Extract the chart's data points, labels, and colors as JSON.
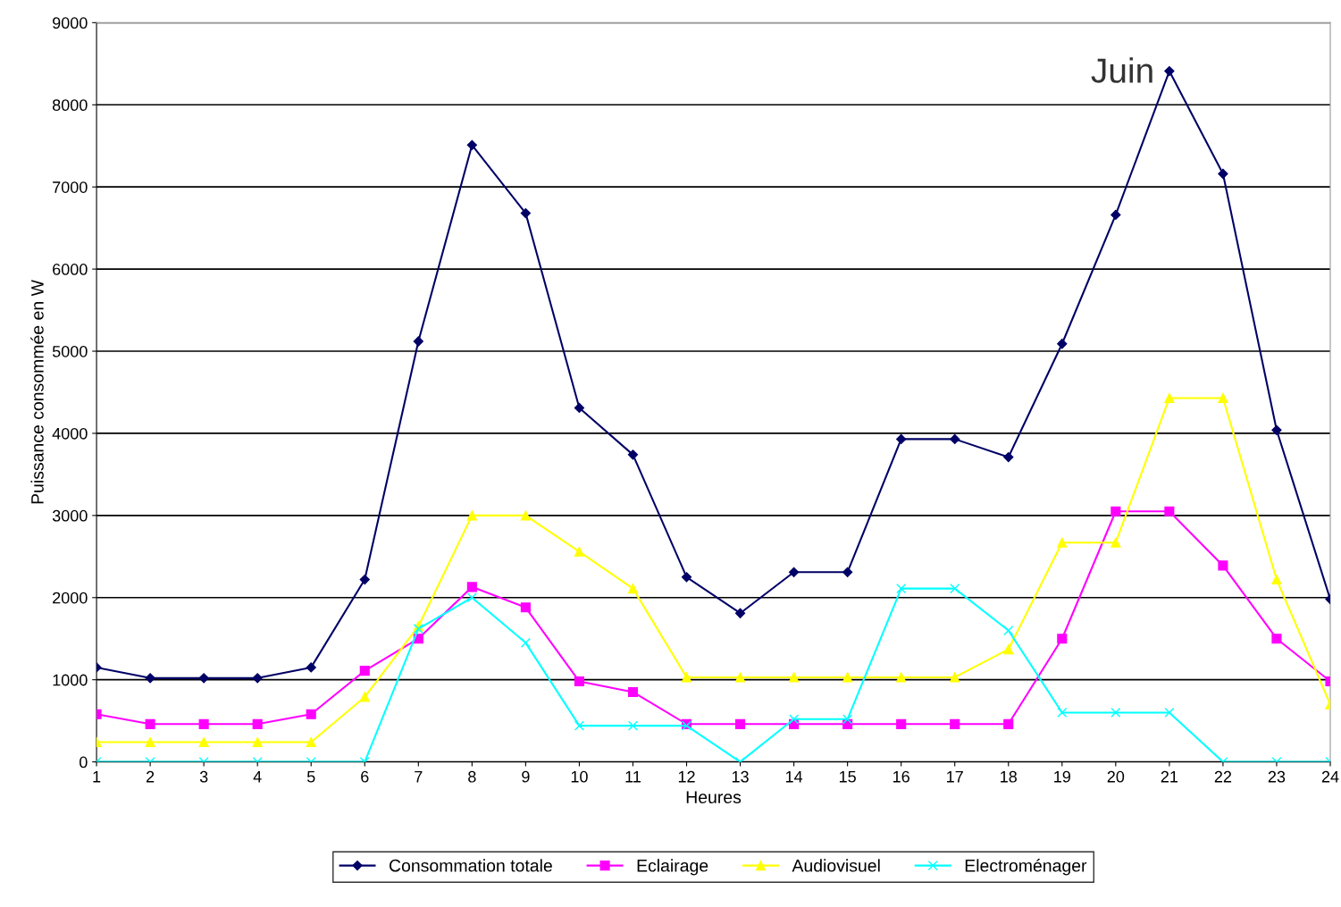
{
  "chart_data": {
    "type": "line",
    "xlabel": "Heures",
    "ylabel": "Puissance consommée en W",
    "x": [
      1,
      2,
      3,
      4,
      5,
      6,
      7,
      8,
      9,
      10,
      11,
      12,
      13,
      14,
      15,
      16,
      17,
      18,
      19,
      20,
      21,
      22,
      23,
      24
    ],
    "series": [
      {
        "name": "Consommation totale",
        "color": "#000066",
        "marker": "diamond",
        "values": [
          1150,
          1020,
          1020,
          1020,
          1150,
          2220,
          5120,
          7510,
          6680,
          4310,
          3740,
          2250,
          1810,
          2310,
          2310,
          3930,
          3930,
          3710,
          5090,
          6660,
          8410,
          7160,
          4040,
          1980
        ]
      },
      {
        "name": "Eclairage",
        "color": "#ff00ff",
        "marker": "square",
        "values": [
          580,
          460,
          460,
          460,
          580,
          1110,
          1500,
          2130,
          1880,
          980,
          850,
          460,
          460,
          460,
          460,
          460,
          460,
          460,
          1500,
          3050,
          3050,
          2390,
          1500,
          980
        ]
      },
      {
        "name": "Audiovisuel",
        "color": "#ffff00",
        "marker": "triangle",
        "values": [
          240,
          240,
          240,
          240,
          240,
          790,
          1650,
          3000,
          3000,
          2560,
          2110,
          1030,
          1030,
          1030,
          1030,
          1030,
          1030,
          1370,
          2670,
          2670,
          4430,
          4430,
          2220,
          700
        ]
      },
      {
        "name": "Electroménager",
        "color": "#00ffff",
        "marker": "cross",
        "values": [
          0,
          0,
          0,
          0,
          0,
          0,
          1620,
          2000,
          1450,
          440,
          440,
          440,
          0,
          520,
          520,
          2110,
          2110,
          1600,
          600,
          600,
          600,
          0,
          0,
          0
        ]
      }
    ],
    "annotations": [
      {
        "text": "Juin",
        "x": 21,
        "y": 8410
      }
    ],
    "xlim": [
      1,
      24
    ],
    "xticks": [
      1,
      2,
      3,
      4,
      5,
      6,
      7,
      8,
      9,
      10,
      11,
      12,
      13,
      14,
      15,
      16,
      17,
      18,
      19,
      20,
      21,
      22,
      23,
      24
    ],
    "ylim": [
      0,
      9000
    ],
    "yticks": [
      0,
      1000,
      2000,
      3000,
      4000,
      5000,
      6000,
      7000,
      8000,
      9000
    ],
    "grid": "y",
    "legend": "bottom",
    "line_style": "solid"
  }
}
